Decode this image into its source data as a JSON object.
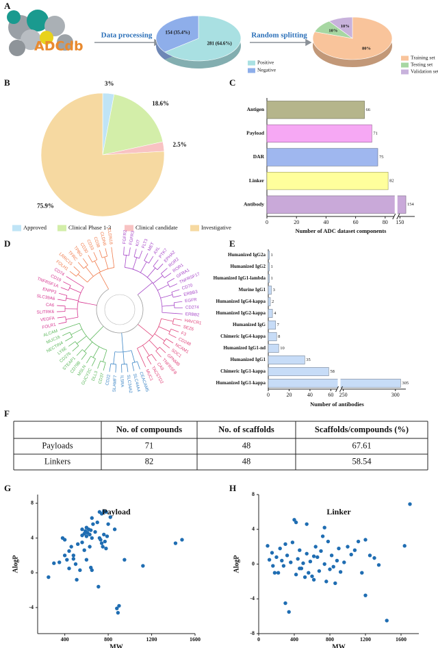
{
  "panel_labels": [
    "A",
    "B",
    "C",
    "D",
    "E",
    "F",
    "G",
    "H"
  ],
  "pipeline": {
    "logo": "ADCdb",
    "steps": [
      "Data processing",
      "Random splitting"
    ]
  },
  "chart_data": [
    {
      "type": "pie",
      "three_d": true,
      "categories": [
        "Positive",
        "Negative"
      ],
      "values": [
        281,
        154
      ],
      "value_labels": [
        "281 (64.6%)",
        "154 (35.4%)"
      ],
      "colors": [
        "#a9e0e2",
        "#8eaeea"
      ]
    },
    {
      "type": "pie",
      "three_d": true,
      "categories": [
        "Training set",
        "Testing set",
        "Validation set"
      ],
      "values": [
        80,
        10,
        10
      ],
      "value_labels": [
        "80%",
        "10%",
        "10%"
      ],
      "colors": [
        "#f9c49b",
        "#a7d7a2",
        "#c8b2dc"
      ]
    },
    {
      "type": "pie",
      "three_d": false,
      "categories": [
        "Approved",
        "Clinical Phase 1-3",
        "Clinical candidate",
        "Investigative"
      ],
      "values": [
        3,
        18.6,
        2.5,
        75.9
      ],
      "value_labels": [
        "3%",
        "18.6%",
        "2.5%",
        "75.9%"
      ],
      "colors": [
        "#bfe4f6",
        "#d3eea9",
        "#f8c3c3",
        "#f6d9a1"
      ]
    },
    {
      "type": "bar",
      "orientation": "horizontal",
      "categories": [
        "Antigen",
        "Payload",
        "DAR",
        "Linker",
        "Antibody"
      ],
      "values": [
        66,
        71,
        75,
        82,
        154
      ],
      "colors": [
        "#b5b58b",
        "#f6a8f4",
        "#9fb7ef",
        "#ffff9c",
        "#c9a9d9"
      ],
      "xlim": [
        0,
        160
      ],
      "xbreak": [
        86,
        146
      ],
      "xticks": [
        0,
        20,
        40,
        60,
        80,
        150
      ],
      "xlabel": "Number of ADC dataset components"
    },
    {
      "type": "bar",
      "orientation": "horizontal",
      "categories": [
        "Humanized IgG2a",
        "Humanized IgG2",
        "Humanized IgG1-lambda",
        "Murine IgG1",
        "Humanized IgG4-kappa",
        "Humanized IgG2-kappa",
        "Humanized IgG",
        "Chimeric IgG4-kappa",
        "Humanized IgG1-nd",
        "Humanized IgG1",
        "Chimeric IgG1-kappa",
        "Humanized IgG1-kappa"
      ],
      "values": [
        1,
        1,
        1,
        3,
        2,
        4,
        7,
        8,
        10,
        35,
        58,
        305
      ],
      "color": "#c7dcf7",
      "xlim": [
        0,
        310
      ],
      "xbreak": [
        66,
        244
      ],
      "xticks": [
        0,
        20,
        40,
        60,
        250,
        300
      ],
      "xlabel": "Number of antibodies"
    },
    {
      "type": "scatter",
      "title": "Payload",
      "xlabel": "MW",
      "ylabel": "AlogP",
      "color": "#1f6db2",
      "xlim": [
        150,
        1600
      ],
      "ylim": [
        -7,
        9
      ],
      "xticks": [
        400,
        800,
        1200,
        1600
      ],
      "yticks": [
        -4,
        0,
        4,
        8
      ],
      "x": [
        250,
        300,
        350,
        380,
        400,
        420,
        440,
        460,
        480,
        500,
        510,
        520,
        540,
        560,
        580,
        600,
        560,
        580,
        590,
        600,
        610,
        620,
        630,
        640,
        650,
        660,
        650,
        630,
        640,
        650,
        700,
        720,
        740,
        760,
        780,
        720,
        730,
        740,
        750,
        760,
        770,
        780,
        790,
        710,
        800,
        820,
        860,
        880,
        890,
        900,
        950,
        1120,
        1420,
        1480,
        400,
        440,
        560,
        600,
        680,
        480
      ],
      "values": [
        -0.5,
        1.1,
        1.2,
        4.0,
        3.8,
        1.5,
        2.5,
        3.0,
        2.0,
        1.0,
        -0.8,
        3.3,
        0.3,
        3.5,
        2.6,
        1.5,
        5.0,
        4.5,
        4.8,
        4.2,
        4.6,
        5.0,
        4.4,
        4.9,
        4.0,
        5.6,
        6.3,
        3.0,
        0.6,
        0.3,
        5.8,
        7.0,
        6.8,
        7.1,
        7.0,
        4.0,
        3.8,
        3.4,
        3.0,
        4.4,
        3.6,
        2.8,
        4.2,
        -1.6,
        5.6,
        6.4,
        5.0,
        -4.1,
        -4.6,
        -3.8,
        1.5,
        0.8,
        3.4,
        3.8,
        2.0,
        0.5,
        4.3,
        5.2,
        4.7,
        1.6
      ]
    },
    {
      "type": "scatter",
      "title": "Linker",
      "xlabel": "MW",
      "ylabel": "AlogP",
      "color": "#1f6db2",
      "xlim": [
        0,
        1800
      ],
      "ylim": [
        -8,
        8
      ],
      "xticks": [
        0,
        400,
        800,
        1200,
        1600
      ],
      "yticks": [
        -8,
        -4,
        0,
        4,
        8
      ],
      "x": [
        100,
        120,
        150,
        180,
        200,
        220,
        240,
        260,
        280,
        300,
        300,
        320,
        340,
        360,
        380,
        400,
        420,
        420,
        440,
        460,
        480,
        500,
        520,
        540,
        540,
        560,
        580,
        600,
        620,
        640,
        660,
        680,
        700,
        720,
        740,
        740,
        760,
        780,
        800,
        820,
        840,
        860,
        880,
        900,
        920,
        960,
        1000,
        1040,
        1080,
        1120,
        1160,
        1200,
        1200,
        1250,
        1300,
        1350,
        1440,
        1640,
        1700,
        160,
        460,
        620
      ],
      "values": [
        2.1,
        0.5,
        1.3,
        -1.0,
        0.8,
        -1.0,
        1.8,
        0.4,
        -0.2,
        2.3,
        -4.5,
        1.0,
        -5.5,
        0.2,
        2.5,
        5.1,
        4.8,
        -1.2,
        0.6,
        1.6,
        -0.5,
        0.1,
        -1.5,
        4.6,
        1.2,
        -1.0,
        0.3,
        -1.4,
        -1.8,
        2.0,
        0.8,
        -0.8,
        1.5,
        3.2,
        4.2,
        0.0,
        -2.0,
        2.6,
        -0.6,
        1.0,
        -0.3,
        -2.2,
        0.4,
        1.8,
        -0.9,
        0.2,
        2.0,
        1.1,
        1.6,
        2.6,
        -1.0,
        2.8,
        -3.6,
        1.0,
        0.7,
        -0.1,
        -6.5,
        2.1,
        6.9,
        -0.2,
        -0.5,
        0.9
      ]
    }
  ],
  "dendrogram": {
    "clusters": [
      {
        "color": "#a646c8",
        "labels": [
          "FGFR2",
          "FGFR3",
          "KIT",
          "FLT3",
          "MET",
          "AXL",
          "PTK7",
          "EPHA2",
          "ROR2",
          "ROR1",
          "GFRA1",
          "TNFRSF17",
          "CD70",
          "ERBB3",
          "EGFR",
          "CD274",
          "ERBB2"
        ]
      },
      {
        "color": "#e0457b",
        "labels": [
          "HAVCR1",
          "SEZ6",
          "F3",
          "CD248",
          "NCAM1",
          "SDC1",
          "GPNMB",
          "TNFRSF8",
          "CA9",
          "TACSTD2",
          "MUC1"
        ]
      },
      {
        "color": "#3d86c6",
        "labels": [
          "CEACAM5",
          "SLC44A4",
          "SLC34A2",
          "IL5RA",
          "SLAMF7",
          "CD22"
        ]
      },
      {
        "color": "#5cb85c",
        "labels": [
          "CD37",
          "DLL3",
          "GUCY2C",
          "MSLN",
          "CD79B",
          "STEAP1",
          "CD276",
          "LY6E",
          "NECTIN4",
          "MUC16",
          "ALCAM"
        ]
      },
      {
        "color": "#d6338f",
        "labels": [
          "FOLR1",
          "VEGFA",
          "SLITRK6",
          "CA6",
          "SLC39A6",
          "ENPP3",
          "TNFRSF1A",
          "CD19",
          "CD74"
        ]
      },
      {
        "color": "#f07a4a",
        "labels": [
          "FOLH1",
          "LRRC15",
          "TFRC",
          "TPBG",
          "CD30",
          "CD33",
          "CD38",
          "CLDN6",
          "CLDN18"
        ]
      }
    ]
  },
  "table": {
    "header": [
      "No. of compounds",
      "No. of scaffolds",
      "Scaffolds/compounds (%)"
    ],
    "rows": [
      [
        "Payloads",
        71,
        48,
        67.61
      ],
      [
        "Linkers",
        82,
        48,
        58.54
      ]
    ]
  }
}
